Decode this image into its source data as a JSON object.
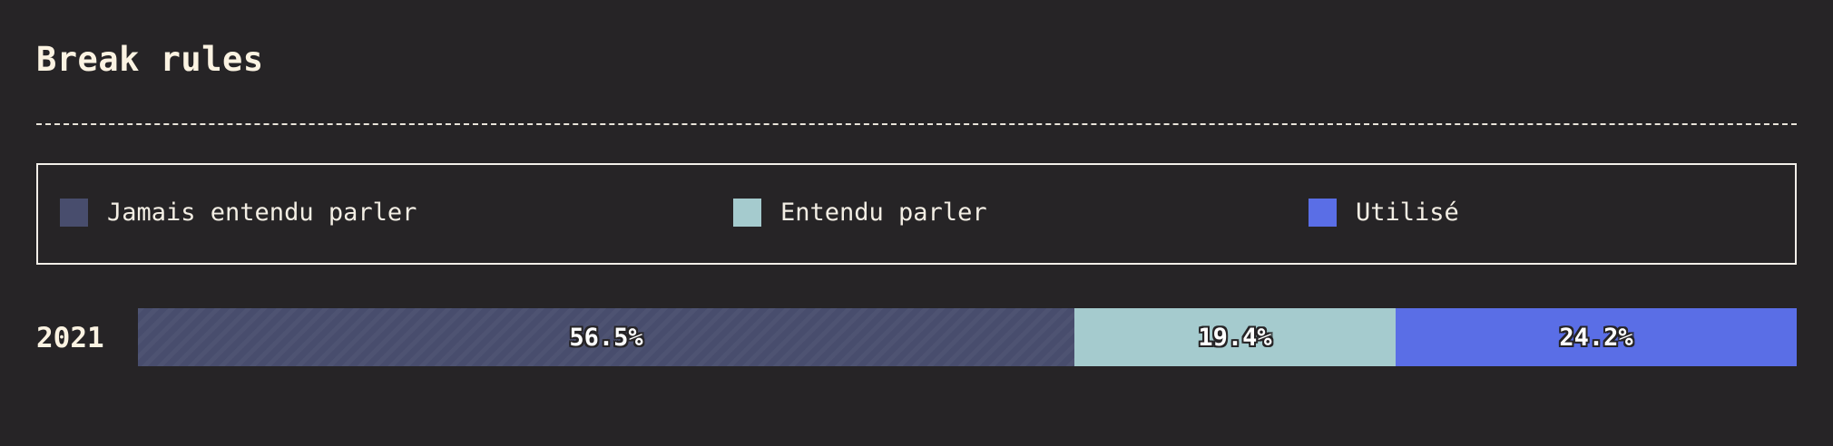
{
  "chart_data": {
    "type": "bar",
    "orientation": "horizontal",
    "stacked": true,
    "normalized": true,
    "title": "Break rules",
    "categories": [
      "2021"
    ],
    "series": [
      {
        "name": "Jamais entendu parler",
        "values": [
          56.5
        ],
        "labels": [
          "56.5%"
        ],
        "color": "#484d6d"
      },
      {
        "name": "Entendu parler",
        "values": [
          19.4
        ],
        "labels": [
          "19.4%"
        ],
        "color": "#a5cbce"
      },
      {
        "name": "Utilisé",
        "values": [
          24.2
        ],
        "labels": [
          "24.2%"
        ],
        "color": "#5a6ee6"
      }
    ],
    "xlim": [
      0,
      100
    ],
    "legend_position": "top",
    "grid": false
  },
  "colors": {
    "background": "#262426",
    "text": "#fbf3e2"
  }
}
